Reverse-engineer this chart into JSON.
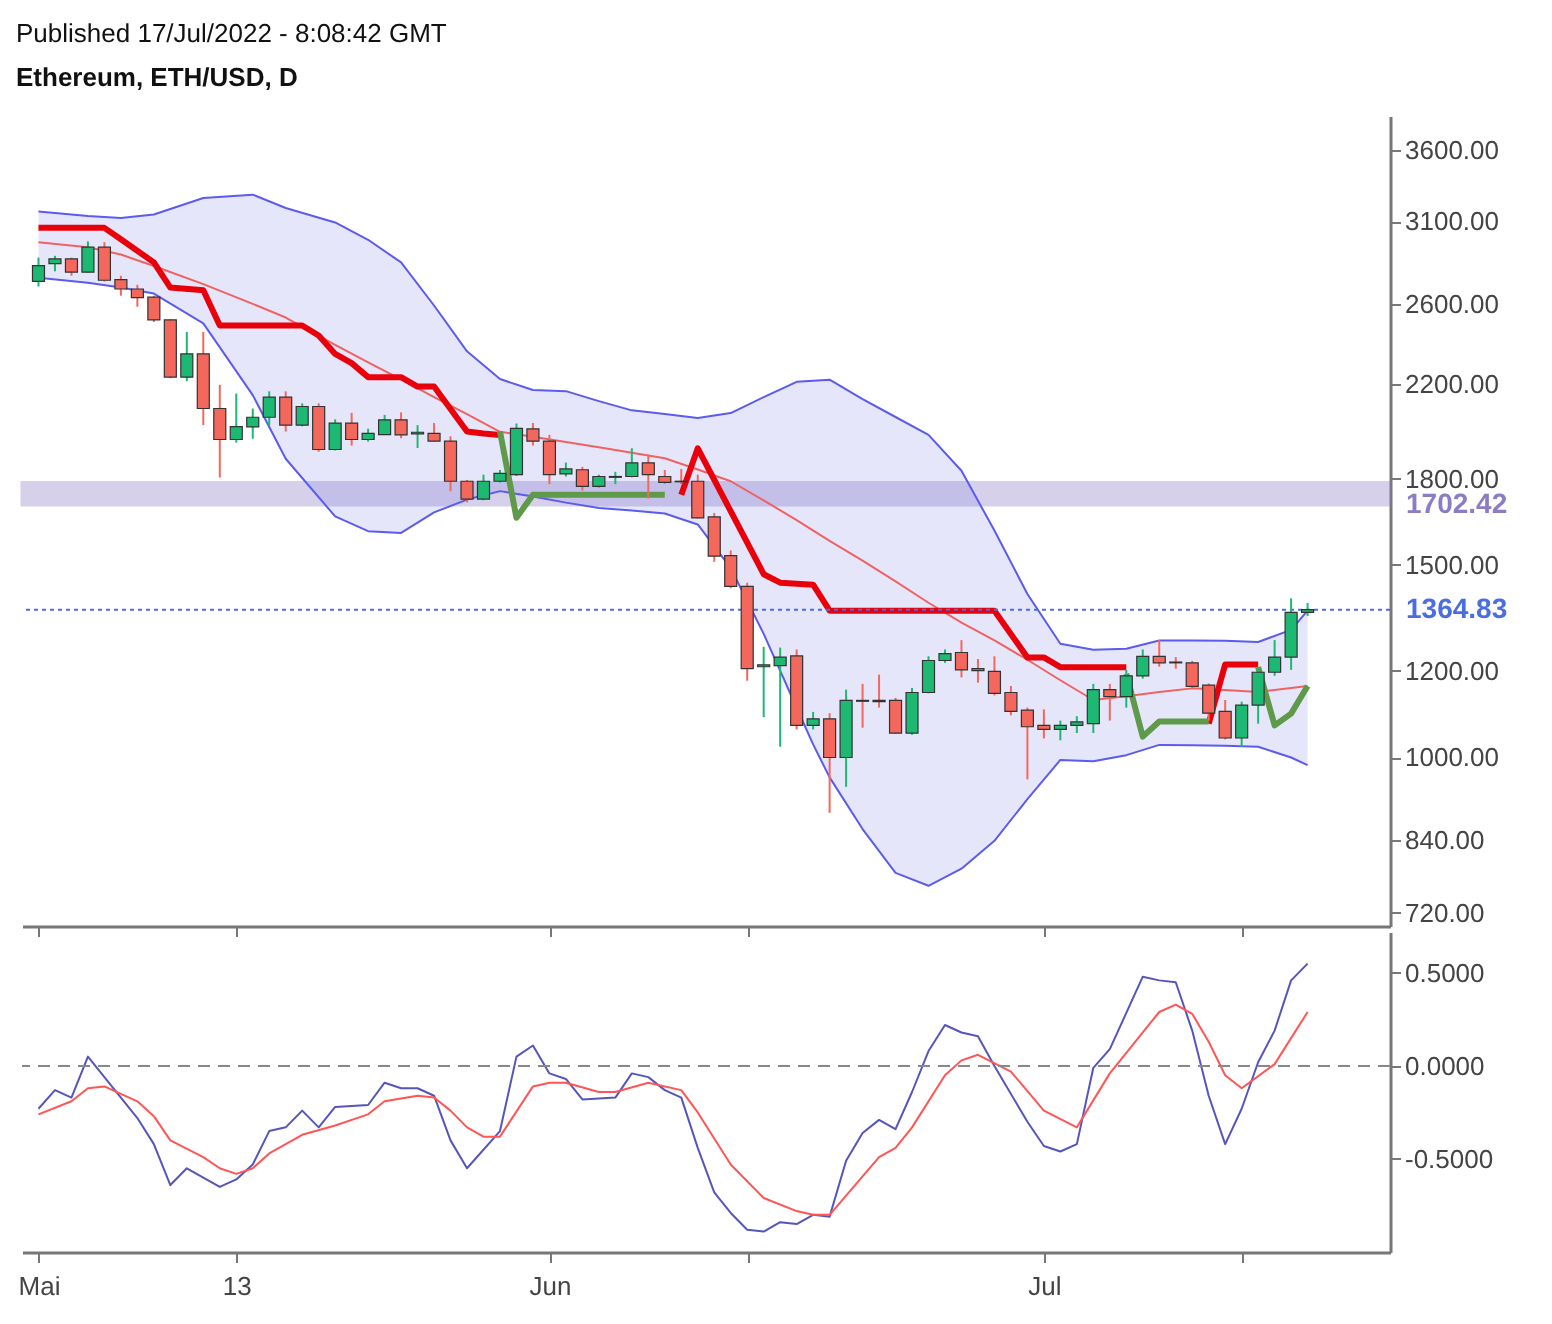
{
  "chart_data": [
    {
      "type": "candlestick",
      "title": "Ethereum, ETH/USD, D",
      "annotations": [
        "Published 17/Jul/2022 - 8:08:42 GMT"
      ],
      "x": [
        "2022-05-01",
        "2022-05-02",
        "2022-05-03",
        "2022-05-04",
        "2022-05-05",
        "2022-05-06",
        "2022-05-07",
        "2022-05-08",
        "2022-05-09",
        "2022-05-10",
        "2022-05-11",
        "2022-05-12",
        "2022-05-13",
        "2022-05-14",
        "2022-05-15",
        "2022-05-16",
        "2022-05-17",
        "2022-05-18",
        "2022-05-19",
        "2022-05-20",
        "2022-05-21",
        "2022-05-22",
        "2022-05-23",
        "2022-05-24",
        "2022-05-25",
        "2022-05-26",
        "2022-05-27",
        "2022-05-28",
        "2022-05-29",
        "2022-05-30",
        "2022-05-31",
        "2022-06-01",
        "2022-06-02",
        "2022-06-03",
        "2022-06-04",
        "2022-06-05",
        "2022-06-06",
        "2022-06-07",
        "2022-06-08",
        "2022-06-09",
        "2022-06-10",
        "2022-06-11",
        "2022-06-12",
        "2022-06-13",
        "2022-06-14",
        "2022-06-15",
        "2022-06-16",
        "2022-06-17",
        "2022-06-18",
        "2022-06-19",
        "2022-06-20",
        "2022-06-21",
        "2022-06-22",
        "2022-06-23",
        "2022-06-24",
        "2022-06-25",
        "2022-06-26",
        "2022-06-27",
        "2022-06-28",
        "2022-06-29",
        "2022-06-30",
        "2022-07-01",
        "2022-07-02",
        "2022-07-03",
        "2022-07-04",
        "2022-07-05",
        "2022-07-06",
        "2022-07-07",
        "2022-07-08",
        "2022-07-09",
        "2022-07-10",
        "2022-07-11",
        "2022-07-12",
        "2022-07-13",
        "2022-07-14",
        "2022-07-15",
        "2022-07-16",
        "2022-07-17"
      ],
      "ohlc": [
        [
          2729,
          2870,
          2700,
          2822
        ],
        [
          2834,
          2881,
          2788,
          2862
        ],
        [
          2862,
          2870,
          2762,
          2783
        ],
        [
          2783,
          2970,
          2780,
          2934
        ],
        [
          2934,
          2965,
          2729,
          2736
        ],
        [
          2740,
          2762,
          2648,
          2686
        ],
        [
          2686,
          2710,
          2587,
          2638
        ],
        [
          2640,
          2648,
          2505,
          2516
        ],
        [
          2516,
          2520,
          2225,
          2230
        ],
        [
          2230,
          2453,
          2211,
          2342
        ],
        [
          2342,
          2453,
          2015,
          2087
        ],
        [
          2087,
          2194,
          1804,
          1955
        ],
        [
          1955,
          2154,
          1942,
          2009
        ],
        [
          2008,
          2087,
          1958,
          2049
        ],
        [
          2049,
          2164,
          2015,
          2138
        ],
        [
          2138,
          2164,
          1988,
          2015
        ],
        [
          2015,
          2110,
          2010,
          2096
        ],
        [
          2096,
          2110,
          1905,
          1914
        ],
        [
          1914,
          2040,
          1910,
          2024
        ],
        [
          2024,
          2068,
          1930,
          1955
        ],
        [
          1955,
          2000,
          1946,
          1980
        ],
        [
          1975,
          2059,
          1974,
          2038
        ],
        [
          2038,
          2070,
          1960,
          1974
        ],
        [
          1978,
          2015,
          1920,
          1985
        ],
        [
          1980,
          2024,
          1946,
          1948
        ],
        [
          1948,
          1968,
          1753,
          1790
        ],
        [
          1790,
          1795,
          1712,
          1724
        ],
        [
          1724,
          1815,
          1720,
          1790
        ],
        [
          1790,
          1833,
          1785,
          1820
        ],
        [
          1815,
          2022,
          1810,
          2001
        ],
        [
          1999,
          2024,
          1930,
          1948
        ],
        [
          1948,
          1974,
          1779,
          1815
        ],
        [
          1818,
          1862,
          1808,
          1837
        ],
        [
          1834,
          1845,
          1755,
          1771
        ],
        [
          1771,
          1815,
          1766,
          1808
        ],
        [
          1805,
          1826,
          1779,
          1808
        ],
        [
          1808,
          1919,
          1805,
          1861
        ],
        [
          1861,
          1893,
          1726,
          1815
        ],
        [
          1808,
          1833,
          1780,
          1786
        ],
        [
          1790,
          1837,
          1779,
          1788
        ],
        [
          1790,
          1815,
          1655,
          1657
        ],
        [
          1660,
          1674,
          1510,
          1528
        ],
        [
          1530,
          1547,
          1428,
          1434
        ],
        [
          1434,
          1445,
          1175,
          1205
        ],
        [
          1210,
          1262,
          1088,
          1215
        ],
        [
          1213,
          1260,
          1022,
          1235
        ],
        [
          1238,
          1255,
          1060,
          1069
        ],
        [
          1069,
          1100,
          1060,
          1084
        ],
        [
          1084,
          1097,
          889,
          999
        ],
        [
          999,
          1153,
          939,
          1127
        ],
        [
          1127,
          1167,
          1064,
          1125
        ],
        [
          1127,
          1190,
          1110,
          1124
        ],
        [
          1127,
          1133,
          1050,
          1052
        ],
        [
          1052,
          1157,
          1048,
          1146
        ],
        [
          1146,
          1237,
          1144,
          1226
        ],
        [
          1226,
          1255,
          1220,
          1244
        ],
        [
          1247,
          1280,
          1183,
          1202
        ],
        [
          1205,
          1230,
          1170,
          1200
        ],
        [
          1198,
          1237,
          1139,
          1144
        ],
        [
          1146,
          1162,
          1092,
          1101
        ],
        [
          1104,
          1110,
          954,
          1066
        ],
        [
          1069,
          1106,
          1040,
          1060
        ],
        [
          1060,
          1080,
          1036,
          1069
        ],
        [
          1069,
          1090,
          1052,
          1077
        ],
        [
          1073,
          1167,
          1052,
          1153
        ],
        [
          1153,
          1167,
          1080,
          1136
        ],
        [
          1136,
          1202,
          1110,
          1187
        ],
        [
          1187,
          1255,
          1180,
          1237
        ],
        [
          1237,
          1280,
          1210,
          1220
        ],
        [
          1222,
          1235,
          1205,
          1220
        ],
        [
          1220,
          1225,
          1157,
          1161
        ],
        [
          1164,
          1168,
          1080,
          1097
        ],
        [
          1101,
          1128,
          1038,
          1041
        ],
        [
          1041,
          1124,
          1022,
          1116
        ],
        [
          1116,
          1207,
          1073,
          1196
        ],
        [
          1196,
          1280,
          1187,
          1235
        ],
        [
          1235,
          1398,
          1202,
          1357
        ],
        [
          1357,
          1384,
          1347,
          1364.83
        ]
      ],
      "colors": [
        "#1db872",
        "#1db872",
        "#f4675c",
        "#1db872",
        "#f4675c",
        "#f4675c",
        "#f4675c",
        "#f4675c",
        "#f4675c",
        "#1db872",
        "#f4675c",
        "#f4675c",
        "#1db872",
        "#1db872",
        "#1db872",
        "#f4675c",
        "#1db872",
        "#f4675c",
        "#1db872",
        "#f4675c",
        "#1db872",
        "#1db872",
        "#f4675c",
        "#1db872",
        "#f4675c",
        "#f4675c",
        "#f4675c",
        "#1db872",
        "#1db872",
        "#1db872",
        "#f4675c",
        "#f4675c",
        "#1db872",
        "#f4675c",
        "#1db872",
        "#1db872",
        "#1db872",
        "#f4675c",
        "#f4675c",
        "#f4675c",
        "#f4675c",
        "#f4675c",
        "#f4675c",
        "#f4675c",
        "#1db872",
        "#1db872",
        "#f4675c",
        "#1db872",
        "#f4675c",
        "#1db872",
        "#f4675c",
        "#f4675c",
        "#f4675c",
        "#1db872",
        "#1db872",
        "#1db872",
        "#f4675c",
        "#f4675c",
        "#f4675c",
        "#f4675c",
        "#f4675c",
        "#f4675c",
        "#1db872",
        "#1db872",
        "#1db872",
        "#f4675c",
        "#1db872",
        "#1db872",
        "#f4675c",
        "#f4675c",
        "#f4675c",
        "#f4675c",
        "#f4675c",
        "#1db872",
        "#1db872",
        "#1db872",
        "#1db872",
        "#1db872"
      ],
      "series": [
        {
          "type": "line",
          "color": "#f06262",
          "x": [
            "2022-05-01",
            "2022-05-04",
            "2022-05-06",
            "2022-05-08",
            "2022-05-11",
            "2022-05-14",
            "2022-05-16",
            "2022-05-19",
            "2022-05-21",
            "2022-05-23",
            "2022-05-25",
            "2022-05-27",
            "2022-05-29",
            "2022-05-31",
            "2022-06-02",
            "2022-06-04",
            "2022-06-06",
            "2022-06-08",
            "2022-06-10",
            "2022-06-12",
            "2022-06-14",
            "2022-06-16",
            "2022-06-18",
            "2022-06-20",
            "2022-06-22",
            "2022-06-24",
            "2022-06-26",
            "2022-06-28",
            "2022-06-30",
            "2022-07-02",
            "2022-07-04",
            "2022-07-06",
            "2022-07-08",
            "2022-07-10",
            "2022-07-12",
            "2022-07-14",
            "2022-07-16",
            "2022-07-17"
          ],
          "values": [
            2964,
            2934,
            2889,
            2820,
            2714,
            2603,
            2529,
            2387,
            2300,
            2219,
            2138,
            2062,
            1987,
            1966,
            1945,
            1923,
            1901,
            1879,
            1835,
            1790,
            1719,
            1649,
            1578,
            1514,
            1449,
            1385,
            1328,
            1279,
            1228,
            1176,
            1128,
            1137,
            1147,
            1156,
            1152,
            1147,
            1157,
            1162
          ],
          "upper": [
            3164,
            3134,
            3120,
            3143,
            3255,
            3278,
            3187,
            3091,
            2980,
            2841,
            2594,
            2355,
            2221,
            2170,
            2165,
            2120,
            2079,
            2063,
            2046,
            2067,
            2138,
            2208,
            2218,
            2129,
            2050,
            1974,
            1830,
            1613,
            1411,
            1270,
            1254,
            1257,
            1279,
            1279,
            1278,
            1275,
            1308,
            1362
          ],
          "lower": [
            2751,
            2721,
            2694,
            2660,
            2498,
            2147,
            1877,
            1662,
            1611,
            1605,
            1676,
            1722,
            1753,
            1733,
            1711,
            1692,
            1683,
            1672,
            1634,
            1490,
            1297,
            1096,
            958,
            859,
            783,
            762,
            790,
            838,
            915,
            994,
            991,
            1004,
            1026,
            1025,
            1024,
            1022,
            999,
            983
          ]
        },
        {
          "type": "line",
          "color": "#5b5bef",
          "x": [
            "2022-05-01",
            "2022-05-04",
            "2022-05-06",
            "2022-05-08",
            "2022-05-11",
            "2022-05-14",
            "2022-05-16",
            "2022-05-19",
            "2022-05-21",
            "2022-05-23",
            "2022-05-25",
            "2022-05-27",
            "2022-05-29",
            "2022-05-31",
            "2022-06-02",
            "2022-06-04",
            "2022-06-06",
            "2022-06-08",
            "2022-06-10",
            "2022-06-12",
            "2022-06-14",
            "2022-06-16",
            "2022-06-18",
            "2022-06-20",
            "2022-06-22",
            "2022-06-24",
            "2022-06-26",
            "2022-06-28",
            "2022-06-30",
            "2022-07-02",
            "2022-07-04",
            "2022-07-06",
            "2022-07-08",
            "2022-07-10",
            "2022-07-12",
            "2022-07-14",
            "2022-07-16",
            "2022-07-17"
          ],
          "values": [
            3164,
            3134,
            3120,
            3143,
            3255,
            3278,
            3187,
            3091,
            2980,
            2841,
            2594,
            2355,
            2221,
            2170,
            2165,
            2120,
            2079,
            2063,
            2046,
            2067,
            2138,
            2208,
            2218,
            2129,
            2050,
            1974,
            1830,
            1613,
            1411,
            1270,
            1254,
            1257,
            1279,
            1279,
            1278,
            1275,
            1308,
            1362
          ]
        },
        {
          "type": "line",
          "color": "#5b5bef",
          "x": [
            "2022-05-01",
            "2022-05-04",
            "2022-05-06",
            "2022-05-08",
            "2022-05-11",
            "2022-05-14",
            "2022-05-16",
            "2022-05-19",
            "2022-05-21",
            "2022-05-23",
            "2022-05-25",
            "2022-05-27",
            "2022-05-29",
            "2022-05-31",
            "2022-06-02",
            "2022-06-04",
            "2022-06-06",
            "2022-06-08",
            "2022-06-10",
            "2022-06-12",
            "2022-06-14",
            "2022-06-17",
            "2022-06-18",
            "2022-06-20",
            "2022-06-22",
            "2022-06-24",
            "2022-06-26",
            "2022-06-28",
            "2022-06-30",
            "2022-07-02",
            "2022-07-04",
            "2022-07-06",
            "2022-07-08",
            "2022-07-10",
            "2022-07-12",
            "2022-07-14",
            "2022-07-16",
            "2022-07-17"
          ],
          "values": [
            2751,
            2721,
            2694,
            2660,
            2498,
            2147,
            1877,
            1662,
            1611,
            1605,
            1676,
            1722,
            1753,
            1733,
            1711,
            1692,
            1683,
            1672,
            1634,
            1490,
            1297,
            1027,
            958,
            859,
            783,
            762,
            790,
            838,
            915,
            994,
            991,
            1004,
            1026,
            1025,
            1024,
            1022,
            999,
            983
          ]
        },
        {
          "type": "line",
          "color": "#e8000b",
          "x": [
            "2022-05-01",
            "2022-05-05",
            "2022-05-06",
            "2022-05-08",
            "2022-05-09",
            "2022-05-11",
            "2022-05-12",
            "2022-05-17",
            "2022-05-18",
            "2022-05-19",
            "2022-05-20",
            "2022-05-21",
            "2022-05-23",
            "2022-05-24",
            "2022-05-25",
            "2022-05-27",
            "2022-05-28",
            "2022-05-29",
            "2022-06-03",
            "2022-06-09",
            "2022-06-10",
            "2022-06-14",
            "2022-06-15",
            "2022-06-17",
            "2022-06-18",
            "2022-06-28",
            "2022-06-30",
            "2022-07-01",
            "2022-07-02",
            "2022-07-06",
            "2022-07-09",
            "2022-07-11",
            "2022-07-12",
            "2022-07-14"
          ],
          "values": [
            3056,
            3056,
            2984,
            2841,
            2694,
            2679,
            2487,
            2487,
            2435,
            2342,
            2297,
            2230,
            2230,
            2186,
            2186,
            1988,
            1980,
            1974,
            null,
            1740,
            1919,
            1471,
            1445,
            1439,
            1362,
            1362,
            1234,
            1234,
            1209,
            1209,
            null,
            1073,
            1216,
            1216
          ]
        },
        {
          "type": "line",
          "color": "#5f9a4a",
          "x": [
            "2022-05-29",
            "2022-05-30",
            "2022-05-31",
            "2022-06-08",
            "2022-06-20",
            "2022-07-06",
            "2022-07-07",
            "2022-07-08",
            "2022-07-11",
            "2022-07-13",
            "2022-07-14",
            "2022-07-15",
            "2022-07-16",
            "2022-07-17"
          ],
          "values": [
            1988,
            1657,
            1740,
            1740,
            null,
            1192,
            1044,
            1078,
            1078,
            null,
            1209,
            1069,
            1096,
            1162
          ]
        }
      ],
      "xlim": [
        "2022-04-30",
        "2022-07-22"
      ],
      "xticks": [
        {
          "value": "2022-05-01",
          "label": null
        },
        {
          "value": "2022-05-13",
          "label": null
        },
        {
          "value": "2022-06-01",
          "label": null
        },
        {
          "value": "2022-06-13",
          "label": null
        },
        {
          "value": "2022-07-01",
          "label": null
        },
        {
          "value": "2022-07-13",
          "label": null
        }
      ],
      "ylim": [
        700,
        3870
      ],
      "log": true,
      "yticks": [
        {
          "value": 720,
          "label": "720.00"
        },
        {
          "value": 840,
          "label": "840.00"
        },
        {
          "value": 1000,
          "label": "1000.00"
        },
        {
          "value": 1200,
          "label": "1200.00"
        },
        {
          "value": 1500,
          "label": "1500.00"
        },
        {
          "value": 1800,
          "label": "1800.00"
        },
        {
          "value": 2200,
          "label": "2200.00"
        },
        {
          "value": 2600,
          "label": "2600.00"
        },
        {
          "value": 3100,
          "label": "3100.00"
        },
        {
          "value": 3600,
          "label": "3600.00"
        }
      ],
      "tick_labels": "y",
      "ref_lines": [
        {
          "axis": "y",
          "value": 1364.83,
          "label": "1364.83",
          "color": "#4a6ee0",
          "line_style": "dotted"
        }
      ],
      "bands": [
        {
          "axis": "y",
          "from": 1702.42,
          "to": 1785,
          "label": "1702.42",
          "color": "#8c7cc4"
        }
      ]
    },
    {
      "type": "line",
      "series": [
        {
          "color": "#5555bb",
          "x": [
            "2022-05-01",
            "2022-05-02",
            "2022-05-03",
            "2022-05-04",
            "2022-05-07",
            "2022-05-08",
            "2022-05-09",
            "2022-05-10",
            "2022-05-12",
            "2022-05-13",
            "2022-05-14",
            "2022-05-15",
            "2022-05-16",
            "2022-05-17",
            "2022-05-18",
            "2022-05-19",
            "2022-05-21",
            "2022-05-22",
            "2022-05-23",
            "2022-05-24",
            "2022-05-25",
            "2022-05-26",
            "2022-05-27",
            "2022-05-29",
            "2022-05-30",
            "2022-05-31",
            "2022-06-01",
            "2022-06-02",
            "2022-06-03",
            "2022-06-05",
            "2022-06-06",
            "2022-06-07",
            "2022-06-08",
            "2022-06-09",
            "2022-06-10",
            "2022-06-11",
            "2022-06-12",
            "2022-06-13",
            "2022-06-14",
            "2022-06-15",
            "2022-06-16",
            "2022-06-17",
            "2022-06-18",
            "2022-06-19",
            "2022-06-20",
            "2022-06-21",
            "2022-06-22",
            "2022-06-23",
            "2022-06-24",
            "2022-06-25",
            "2022-06-26",
            "2022-06-27",
            "2022-06-28",
            "2022-06-30",
            "2022-07-01",
            "2022-07-02",
            "2022-07-03",
            "2022-07-04",
            "2022-07-05",
            "2022-07-07",
            "2022-07-08",
            "2022-07-09",
            "2022-07-10",
            "2022-07-11",
            "2022-07-12",
            "2022-07-13",
            "2022-07-14",
            "2022-07-15",
            "2022-07-16",
            "2022-07-17"
          ],
          "values": [
            -0.23,
            -0.13,
            -0.17,
            0.05,
            -0.28,
            -0.42,
            -0.64,
            -0.55,
            -0.65,
            -0.61,
            -0.53,
            -0.35,
            -0.33,
            -0.24,
            -0.33,
            -0.22,
            -0.21,
            -0.09,
            -0.12,
            -0.12,
            -0.16,
            -0.4,
            -0.55,
            -0.35,
            0.05,
            0.11,
            -0.04,
            -0.07,
            -0.18,
            -0.17,
            -0.04,
            -0.06,
            -0.13,
            -0.17,
            -0.44,
            -0.68,
            -0.79,
            -0.88,
            -0.89,
            -0.84,
            -0.85,
            -0.8,
            -0.81,
            -0.51,
            -0.36,
            -0.29,
            -0.34,
            -0.14,
            0.08,
            0.22,
            0.18,
            0.16,
            0.0,
            -0.3,
            -0.43,
            -0.46,
            -0.42,
            -0.01,
            0.09,
            0.48,
            0.46,
            0.45,
            0.19,
            -0.16,
            -0.42,
            -0.23,
            0.02,
            0.19,
            0.46,
            0.55
          ]
        },
        {
          "color": "#ff5555",
          "x": [
            "2022-05-01",
            "2022-05-03",
            "2022-05-04",
            "2022-05-05",
            "2022-05-07",
            "2022-05-08",
            "2022-05-09",
            "2022-05-11",
            "2022-05-12",
            "2022-05-13",
            "2022-05-14",
            "2022-05-15",
            "2022-05-17",
            "2022-05-19",
            "2022-05-21",
            "2022-05-22",
            "2022-05-24",
            "2022-05-25",
            "2022-05-26",
            "2022-05-27",
            "2022-05-28",
            "2022-05-29",
            "2022-05-31",
            "2022-06-01",
            "2022-06-02",
            "2022-06-04",
            "2022-06-05",
            "2022-06-07",
            "2022-06-09",
            "2022-06-10",
            "2022-06-12",
            "2022-06-14",
            "2022-06-16",
            "2022-06-17",
            "2022-06-18",
            "2022-06-21",
            "2022-06-22",
            "2022-06-23",
            "2022-06-25",
            "2022-06-26",
            "2022-06-27",
            "2022-06-29",
            "2022-07-01",
            "2022-07-03",
            "2022-07-05",
            "2022-07-07",
            "2022-07-08",
            "2022-07-09",
            "2022-07-10",
            "2022-07-11",
            "2022-07-12",
            "2022-07-13",
            "2022-07-15",
            "2022-07-17"
          ],
          "values": [
            -0.26,
            -0.19,
            -0.12,
            -0.11,
            -0.19,
            -0.27,
            -0.4,
            -0.49,
            -0.55,
            -0.58,
            -0.55,
            -0.47,
            -0.37,
            -0.32,
            -0.26,
            -0.19,
            -0.16,
            -0.17,
            -0.24,
            -0.33,
            -0.38,
            -0.38,
            -0.11,
            -0.09,
            -0.09,
            -0.14,
            -0.14,
            -0.09,
            -0.13,
            -0.25,
            -0.53,
            -0.71,
            -0.78,
            -0.8,
            -0.8,
            -0.49,
            -0.44,
            -0.33,
            -0.05,
            0.03,
            0.06,
            -0.03,
            -0.24,
            -0.33,
            -0.04,
            0.18,
            0.29,
            0.33,
            0.28,
            0.13,
            -0.05,
            -0.12,
            0.01,
            0.29
          ]
        }
      ],
      "xlim": [
        "2022-04-30",
        "2022-07-22"
      ],
      "xticks": [
        {
          "value": "2022-05-01",
          "label": "Mai"
        },
        {
          "value": "2022-05-13",
          "label": "13"
        },
        {
          "value": "2022-06-01",
          "label": "Jun"
        },
        {
          "value": "2022-06-13",
          "label": null
        },
        {
          "value": "2022-07-01",
          "label": "Jul"
        },
        {
          "value": "2022-07-13",
          "label": null
        }
      ],
      "ylim": [
        -1.0,
        0.72
      ],
      "yticks": [
        {
          "value": -0.5,
          "label": "-0.5000"
        },
        {
          "value": 0,
          "label": "0.0000"
        },
        {
          "value": 0.5,
          "label": "0.5000"
        }
      ],
      "ref_lines": [
        {
          "axis": "y",
          "value": 0,
          "color": "#888888",
          "line_style": "dashed"
        }
      ]
    }
  ]
}
